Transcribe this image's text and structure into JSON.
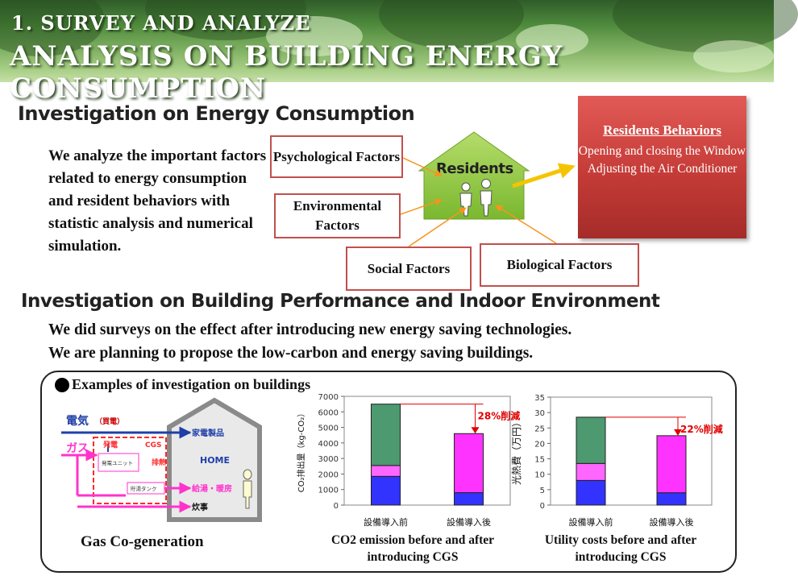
{
  "banner": {
    "line1": "1. SURVEY AND ANALYZE",
    "line2": "ANALYSIS ON BUILDING ENERGY CONSUMPTION"
  },
  "section1": {
    "heading": "Investigation on Energy Consumption",
    "paragraph": "We analyze the important factors related to energy consumption and resident behaviors with statistic analysis and numerical simulation."
  },
  "diagram": {
    "center": "Residents",
    "factors": {
      "psychological": "Psychological Factors",
      "environmental": "Environmental Factors",
      "social": "Social Factors",
      "biological": "Biological Factors"
    },
    "behaviors": {
      "title": "Residents Behaviors",
      "item1": "Opening and closing the Window",
      "item2": "Adjusting the Air Conditioner"
    },
    "colors": {
      "factor_border": "#c0504d",
      "house": "#8cc63f",
      "arrow": "#f7941d",
      "behavior_box": "#c43b37"
    }
  },
  "section2": {
    "heading": "Investigation on Building Performance and Indoor Environment",
    "line1": "We did surveys on the effect after introducing new energy saving technologies.",
    "line2": "We are planning to propose the low-carbon and energy saving buildings."
  },
  "examples": {
    "label": "Examples of investigation on buildings",
    "cgs": {
      "electricity": "電気",
      "electricity_note": "（買電）",
      "gas": "ガス",
      "power_gen": "発電",
      "cgs": "CGS",
      "gen_unit": "発電ユニット",
      "exhaust_heat": "排熱",
      "storage_tank": "貯湯タンク",
      "appliances": "家電製品",
      "home": "HOME",
      "hot_water": "給湯・暖房",
      "cooking": "炊事",
      "caption": "Gas Co-generation"
    },
    "co2_caption": "CO2 emission before and after introducing CGS",
    "util_caption": "Utility costs before and after introducing CGS"
  },
  "chart_data": [
    {
      "type": "bar",
      "stacked": true,
      "categories": [
        "設備導入前",
        "設備導入後"
      ],
      "series": [
        {
          "color": "#3333ff",
          "values": [
            1850,
            800
          ]
        },
        {
          "color": "#ff66ff",
          "values": [
            700,
            0
          ]
        },
        {
          "color": "#4d9970",
          "values": [
            3950,
            0
          ]
        },
        {
          "color": "#ff33ff",
          "values": [
            0,
            3800
          ]
        }
      ],
      "ylabel": "CO₂排出量（kg-CO₂）",
      "ylim": [
        0,
        7000
      ],
      "yticks": [
        0,
        1000,
        2000,
        3000,
        4000,
        5000,
        6000,
        7000
      ],
      "annotation": "28%削減",
      "title": "CO2 emission before and after introducing CGS"
    },
    {
      "type": "bar",
      "stacked": true,
      "categories": [
        "設備導入前",
        "設備導入後"
      ],
      "series": [
        {
          "color": "#3333ff",
          "values": [
            8,
            4
          ]
        },
        {
          "color": "#ff66ff",
          "values": [
            5.5,
            0
          ]
        },
        {
          "color": "#4d9970",
          "values": [
            15,
            0
          ]
        },
        {
          "color": "#ff33ff",
          "values": [
            0,
            18.5
          ]
        }
      ],
      "ylabel": "光熱費（万円）",
      "ylim": [
        0,
        35
      ],
      "yticks": [
        0,
        5,
        10,
        15,
        20,
        25,
        30,
        35
      ],
      "annotation": "22%削減",
      "title": "Utility costs before and after introducing CGS"
    }
  ]
}
